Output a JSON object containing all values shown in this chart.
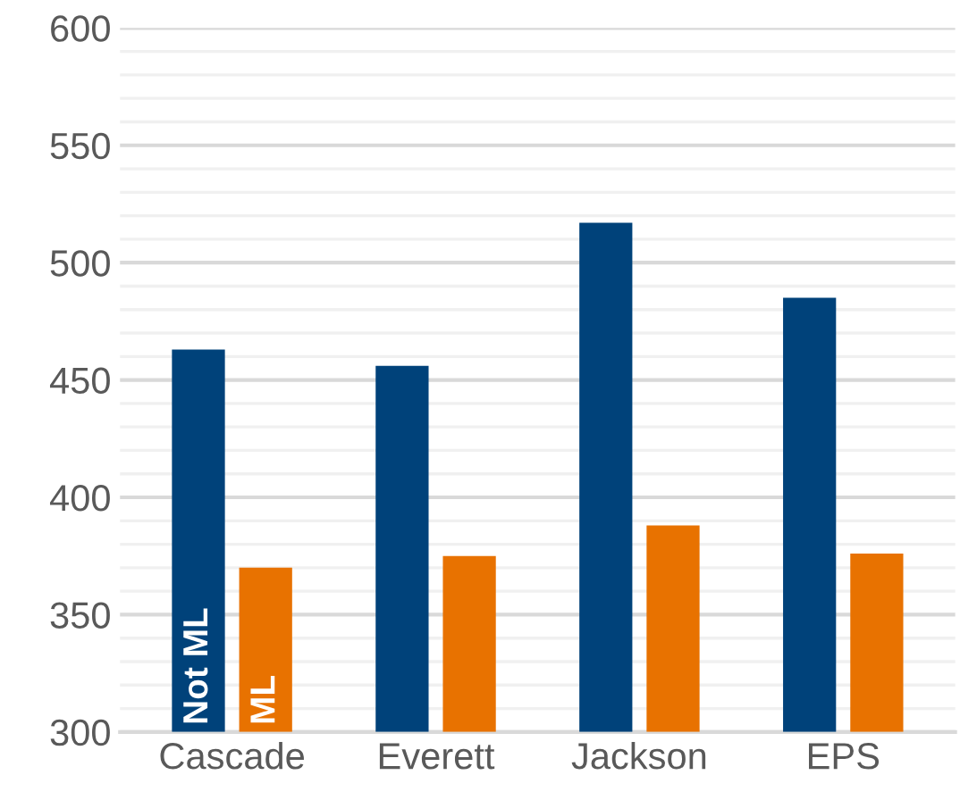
{
  "chart_data": {
    "type": "bar",
    "categories": [
      "Cascade",
      "Everett",
      "Jackson",
      "EPS"
    ],
    "series": [
      {
        "name": "Not ML",
        "color": "#00427a",
        "values": [
          463,
          456,
          517,
          485
        ]
      },
      {
        "name": "ML",
        "color": "#e87200",
        "values": [
          370,
          375,
          388,
          376
        ]
      }
    ],
    "ylim": [
      300,
      600
    ],
    "yticks": [
      300,
      350,
      400,
      450,
      500,
      550,
      600
    ],
    "grid": "y",
    "legend": false
  }
}
